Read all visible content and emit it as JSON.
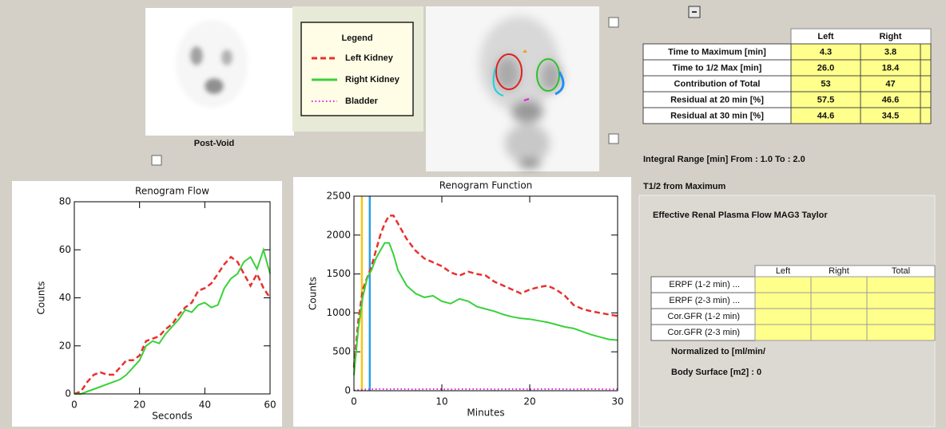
{
  "post_void": {
    "label": "Post-Void"
  },
  "legend": {
    "title": "Legend"
  },
  "results_table": {
    "header": [
      "Left",
      "Right"
    ],
    "rows": [
      [
        "Time to Maximum [min]",
        "4.3",
        "3.8"
      ],
      [
        "Time to 1/2 Max [min]",
        "26.0",
        "18.4"
      ],
      [
        "Contribution of Total",
        "53",
        "47"
      ],
      [
        "Residual at 20 min [%]",
        "57.5",
        "46.6"
      ],
      [
        "Residual at 30 min [%]",
        "44.6",
        "34.5"
      ]
    ]
  },
  "integral_range": "Integral Range [min] From : 1.0 To : 2.0",
  "t_half": "T1/2 from Maximum",
  "erpf_panel": {
    "title": "Effective Renal Plasma Flow MAG3 Taylor",
    "header": [
      "Left",
      "Right",
      "Total"
    ],
    "rows": [
      "ERPF (1-2 min) ...",
      "ERPF (2-3 min) ...",
      "Cor.GFR (1-2 min)",
      "Cor.GFR (2-3 min)"
    ],
    "normalized": "Normalized to [ml/min/",
    "body_surface": "Body Surface [m2] : 0"
  },
  "chart_data": [
    {
      "type": "line",
      "title": "Renogram Flow",
      "x_label": "Seconds",
      "y_label": "Counts",
      "x": [
        0,
        2,
        4,
        6,
        8,
        10,
        12,
        14,
        16,
        18,
        20,
        22,
        24,
        26,
        28,
        30,
        32,
        34,
        36,
        38,
        40,
        42,
        44,
        46,
        48,
        50,
        52,
        54,
        56,
        58,
        60
      ],
      "xlim": [
        0,
        60
      ],
      "xticks": [
        0,
        20,
        40,
        60
      ],
      "ylim": [
        0,
        80
      ],
      "yticks": [
        0,
        20,
        40,
        60,
        80
      ],
      "series": [
        {
          "color": "#e8312f",
          "dash": "dashed",
          "values": [
            0,
            1,
            5,
            8,
            9,
            8,
            8,
            11,
            14,
            14,
            16,
            22,
            23,
            24,
            27,
            29,
            33,
            36,
            38,
            43,
            44,
            46,
            50,
            54,
            57,
            55,
            50,
            45,
            50,
            44,
            40
          ]
        },
        {
          "color": "#3ad13a",
          "dash": "solid",
          "values": [
            0,
            0,
            1,
            2,
            3,
            4,
            5,
            6,
            8,
            11,
            14,
            20,
            22,
            21,
            25,
            28,
            31,
            35,
            34,
            37,
            38,
            36,
            37,
            44,
            48,
            50,
            55,
            57,
            52,
            60,
            50
          ]
        }
      ]
    },
    {
      "type": "line",
      "title": "Renogram Function",
      "x_label": "Minutes",
      "y_label": "Counts",
      "x": [
        0,
        0.5,
        1,
        1.5,
        2,
        2.5,
        3,
        3.5,
        4,
        4.5,
        5,
        6,
        7,
        8,
        9,
        10,
        11,
        12,
        13,
        14,
        15,
        16,
        17,
        18,
        19,
        20,
        21,
        22,
        23,
        24,
        25,
        26,
        27,
        28,
        29,
        30
      ],
      "xlim": [
        0,
        30
      ],
      "xticks": [
        0,
        10,
        20,
        30
      ],
      "ylim": [
        0,
        2500
      ],
      "yticks": [
        0,
        500,
        1000,
        1500,
        2000,
        2500
      ],
      "markers": [
        {
          "value": 0.9,
          "color": "#f2c80f"
        },
        {
          "value": 1.8,
          "color": "#2a9fe8"
        }
      ],
      "series": [
        {
          "name": "Left Kidney",
          "color": "#e8312f",
          "dash": "dashed",
          "values": [
            300,
            900,
            1300,
            1450,
            1600,
            1800,
            2000,
            2150,
            2250,
            2250,
            2150,
            1950,
            1800,
            1700,
            1650,
            1600,
            1520,
            1480,
            1530,
            1500,
            1480,
            1400,
            1350,
            1300,
            1250,
            1300,
            1330,
            1350,
            1300,
            1220,
            1100,
            1050,
            1020,
            1000,
            980,
            960
          ]
        },
        {
          "name": "Right Kidney",
          "color": "#3ad13a",
          "dash": "solid",
          "values": [
            200,
            800,
            1200,
            1450,
            1550,
            1700,
            1800,
            1900,
            1900,
            1750,
            1550,
            1350,
            1250,
            1200,
            1220,
            1150,
            1120,
            1180,
            1150,
            1080,
            1050,
            1020,
            980,
            950,
            930,
            920,
            900,
            880,
            850,
            820,
            800,
            760,
            720,
            690,
            660,
            650
          ]
        },
        {
          "name": "Bladder",
          "color": "#e020e0",
          "dash": "dotted",
          "values": [
            5,
            10,
            15,
            18,
            20,
            20,
            22,
            20,
            18,
            20,
            22,
            20,
            18,
            20,
            22,
            20,
            18,
            20,
            20,
            22,
            20,
            18,
            20,
            22,
            20,
            18,
            20,
            20,
            22,
            20,
            18,
            20,
            22,
            20,
            18,
            20
          ]
        }
      ]
    }
  ]
}
